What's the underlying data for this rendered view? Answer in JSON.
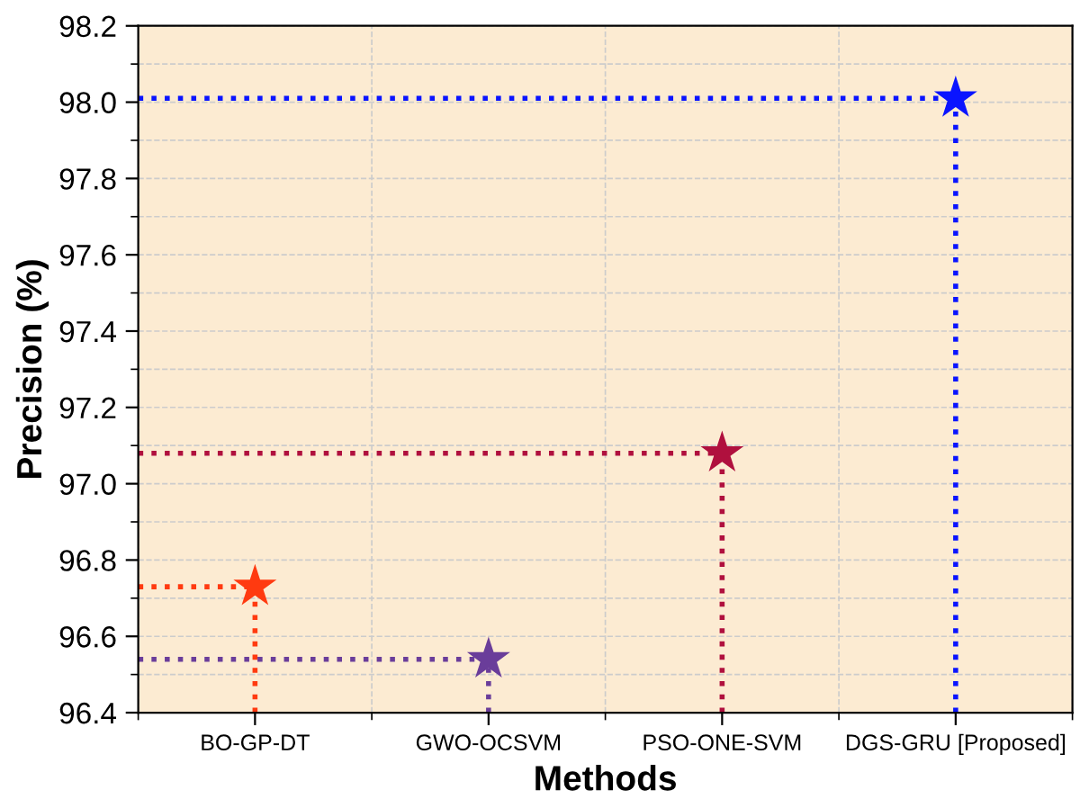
{
  "chart_data": {
    "type": "scatter",
    "xlabel": "Methods",
    "ylabel": "Precision (%)",
    "categories": [
      "BO-GP-DT",
      "GWO-OCSVM",
      "PSO-ONE-SVM",
      "DGS-GRU [Proposed]"
    ],
    "values": [
      96.73,
      96.54,
      97.08,
      98.01
    ],
    "colors": [
      "#ff3a10",
      "#6a3d9a",
      "#b0103e",
      "#0a14ff"
    ],
    "ylim": [
      96.4,
      98.2
    ],
    "yticks": [
      {
        "value": 96.4,
        "label": "96.4"
      },
      {
        "value": 96.6,
        "label": "96.6"
      },
      {
        "value": 96.8,
        "label": "96.8"
      },
      {
        "value": 97.0,
        "label": "97.0"
      },
      {
        "value": 97.2,
        "label": "97.2"
      },
      {
        "value": 97.4,
        "label": "97.4"
      },
      {
        "value": 97.6,
        "label": "97.6"
      },
      {
        "value": 97.8,
        "label": "97.8"
      },
      {
        "value": 98.0,
        "label": "98.0"
      },
      {
        "value": 98.2,
        "label": "98.2"
      }
    ],
    "ref_lines": [
      {
        "axis": "y",
        "value": 96.73,
        "color": "#ff3a10",
        "line_style": "dotted"
      },
      {
        "axis": "y",
        "value": 96.54,
        "color": "#6a3d9a",
        "line_style": "dotted"
      },
      {
        "axis": "y",
        "value": 97.08,
        "color": "#b0103e",
        "line_style": "dotted"
      },
      {
        "axis": "y",
        "value": 98.01,
        "color": "#0a14ff",
        "line_style": "dotted"
      }
    ],
    "marker": "star",
    "line_style": "dotted",
    "grid": true
  }
}
